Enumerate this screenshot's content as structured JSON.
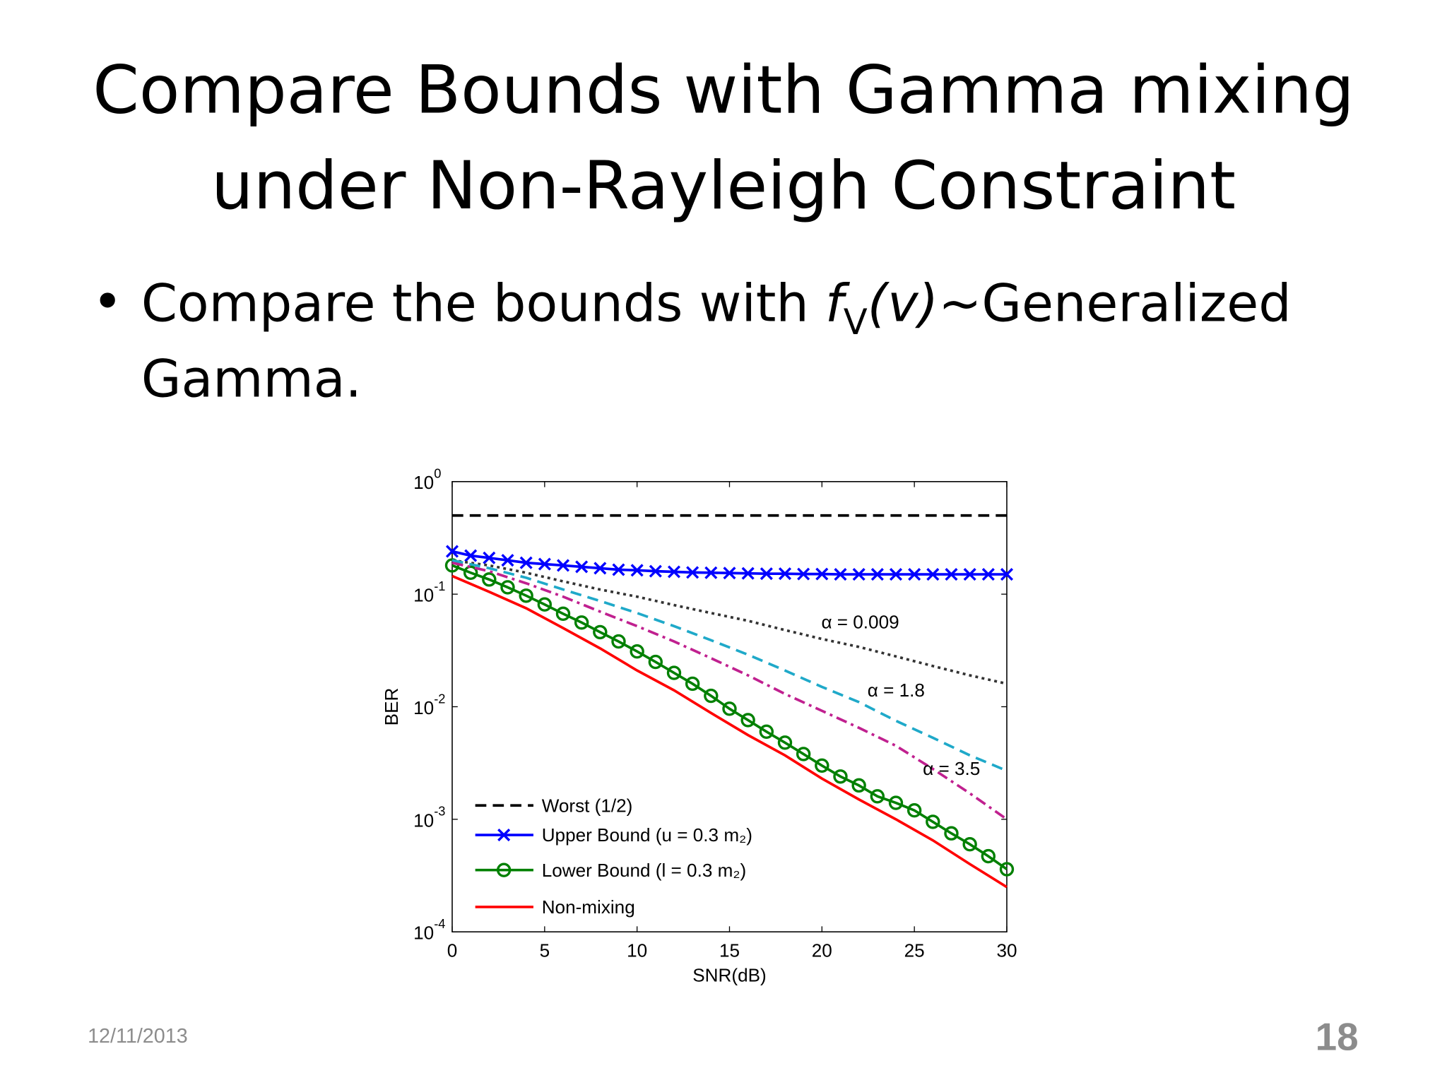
{
  "header": {
    "title_line1": "Compare Bounds with Gamma mixing",
    "title_line2": "under Non-Rayleigh Constraint"
  },
  "bullet": {
    "text_before": "Compare the bounds with ",
    "func": "f",
    "func_sub": "V",
    "func_arg": "(v)",
    "text_after": "~Generalized",
    "line2": "Gamma."
  },
  "chart_data": {
    "type": "line",
    "xlabel": "SNR(dB)",
    "ylabel": "BER",
    "yscale": "log",
    "xlim": [
      0,
      30
    ],
    "ylim": [
      0.0001,
      1
    ],
    "xticks": [
      0,
      5,
      10,
      15,
      20,
      25,
      30
    ],
    "yticks": [
      {
        "value": 1,
        "label": "10",
        "exponent": "0"
      },
      {
        "value": 0.1,
        "label": "10",
        "exponent": "-1"
      },
      {
        "value": 0.01,
        "label": "10",
        "exponent": "-2"
      },
      {
        "value": 0.001,
        "label": "10",
        "exponent": "-3"
      },
      {
        "value": 0.0001,
        "label": "10",
        "exponent": "-4"
      }
    ],
    "grid": false,
    "legend": "lower left",
    "series": [
      {
        "name": "Worst (1/2)",
        "color": "#000000",
        "dash": "dashed",
        "marker": "none",
        "x": [
          0,
          30
        ],
        "values": [
          0.5,
          0.5
        ]
      },
      {
        "name": "Upper Bound (u = 0.3 m₂)",
        "color": "#0000ff",
        "dash": "solid",
        "marker": "x",
        "x": [
          0,
          1,
          2,
          3,
          4,
          5,
          6,
          7,
          8,
          9,
          10,
          11,
          12,
          13,
          14,
          15,
          16,
          17,
          18,
          19,
          20,
          21,
          22,
          23,
          24,
          25,
          26,
          27,
          28,
          29,
          30
        ],
        "values": [
          0.24,
          0.22,
          0.21,
          0.2,
          0.19,
          0.185,
          0.18,
          0.175,
          0.17,
          0.165,
          0.163,
          0.16,
          0.158,
          0.156,
          0.155,
          0.154,
          0.153,
          0.152,
          0.152,
          0.151,
          0.151,
          0.15,
          0.15,
          0.15,
          0.15,
          0.15,
          0.15,
          0.15,
          0.15,
          0.15,
          0.15
        ]
      },
      {
        "name": "Lower Bound (l = 0.3 m₂)",
        "color": "#008000",
        "dash": "solid",
        "marker": "o",
        "x": [
          0,
          1,
          2,
          3,
          4,
          5,
          6,
          7,
          8,
          9,
          10,
          11,
          12,
          13,
          14,
          15,
          16,
          17,
          18,
          19,
          20,
          21,
          22,
          23,
          24,
          25,
          26,
          27,
          28,
          29,
          30
        ],
        "values": [
          0.18,
          0.155,
          0.135,
          0.115,
          0.097,
          0.081,
          0.067,
          0.056,
          0.046,
          0.038,
          0.031,
          0.025,
          0.02,
          0.016,
          0.0125,
          0.0096,
          0.0076,
          0.006,
          0.0048,
          0.0038,
          0.003,
          0.0024,
          0.002,
          0.0016,
          0.0014,
          0.0012,
          0.00095,
          0.00075,
          0.0006,
          0.00047,
          0.00036
        ]
      },
      {
        "name": "Non-mixing",
        "color": "#ff0000",
        "dash": "solid",
        "marker": "none",
        "x": [
          0,
          2,
          4,
          6,
          8,
          10,
          12,
          14,
          16,
          18,
          20,
          22,
          24,
          26,
          28,
          30
        ],
        "values": [
          0.145,
          0.105,
          0.075,
          0.05,
          0.033,
          0.021,
          0.014,
          0.0088,
          0.0056,
          0.0037,
          0.0023,
          0.0015,
          0.001,
          0.00065,
          0.0004,
          0.00025
        ]
      },
      {
        "annotation": "α = 0.009",
        "color": "#333333",
        "dash": "dotted",
        "marker": "none",
        "x": [
          0,
          2,
          4,
          6,
          8,
          10,
          12,
          14,
          16,
          18,
          20,
          22,
          24,
          26,
          28,
          30
        ],
        "values": [
          0.2,
          0.18,
          0.155,
          0.13,
          0.11,
          0.095,
          0.08,
          0.068,
          0.058,
          0.048,
          0.04,
          0.034,
          0.028,
          0.023,
          0.019,
          0.016
        ]
      },
      {
        "annotation": "α = 1.8",
        "color": "#1fa9c9",
        "dash": "dashed",
        "marker": "none",
        "x": [
          0,
          2,
          4,
          6,
          8,
          10,
          12,
          14,
          16,
          18,
          20,
          22,
          24,
          26,
          28,
          30
        ],
        "values": [
          0.2,
          0.17,
          0.14,
          0.11,
          0.087,
          0.068,
          0.052,
          0.039,
          0.029,
          0.021,
          0.015,
          0.011,
          0.0075,
          0.0053,
          0.0037,
          0.0027
        ]
      },
      {
        "annotation": "α = 3.5",
        "color": "#c0208f",
        "dash": "dashdot",
        "marker": "none",
        "x": [
          0,
          2,
          4,
          6,
          8,
          10,
          12,
          14,
          16,
          18,
          20,
          22,
          24,
          26,
          28,
          30
        ],
        "values": [
          0.19,
          0.16,
          0.125,
          0.095,
          0.07,
          0.052,
          0.038,
          0.027,
          0.019,
          0.013,
          0.0092,
          0.0065,
          0.0045,
          0.0028,
          0.0017,
          0.001
        ]
      }
    ]
  },
  "footer": {
    "date": "12/11/2013",
    "page_number": "18"
  }
}
